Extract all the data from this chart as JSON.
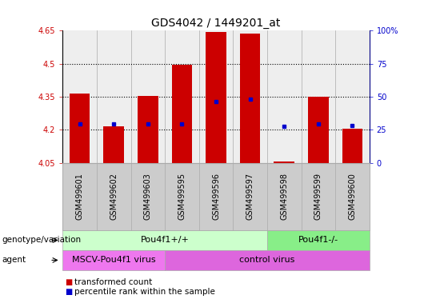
{
  "title": "GDS4042 / 1449201_at",
  "samples": [
    "GSM499601",
    "GSM499602",
    "GSM499603",
    "GSM499595",
    "GSM499596",
    "GSM499597",
    "GSM499598",
    "GSM499599",
    "GSM499600"
  ],
  "bar_values": [
    4.365,
    4.215,
    4.355,
    4.495,
    4.645,
    4.638,
    4.055,
    4.35,
    4.205
  ],
  "percentile_values": [
    4.228,
    4.228,
    4.228,
    4.228,
    4.328,
    4.338,
    4.215,
    4.225,
    4.22
  ],
  "bar_bottom": 4.05,
  "ylim": [
    4.05,
    4.65
  ],
  "yticks": [
    4.05,
    4.2,
    4.35,
    4.5,
    4.65
  ],
  "ytick_labels": [
    "4.05",
    "4.2",
    "4.35",
    "4.5",
    "4.65"
  ],
  "right_yticks": [
    0,
    25,
    50,
    75,
    100
  ],
  "right_ytick_labels": [
    "0",
    "25",
    "50",
    "75",
    "100%"
  ],
  "bar_color": "#cc0000",
  "percentile_color": "#0000cc",
  "dotted_lines": [
    4.2,
    4.35,
    4.5
  ],
  "genotype_groups": [
    {
      "label": "Pou4f1+/+",
      "start": 0,
      "end": 6,
      "color": "#ccffcc"
    },
    {
      "label": "Pou4f1-/-",
      "start": 6,
      "end": 9,
      "color": "#88ee88"
    }
  ],
  "agent_groups": [
    {
      "label": "MSCV-Pou4f1 virus",
      "start": 0,
      "end": 3,
      "color": "#ee77ee"
    },
    {
      "label": "control virus",
      "start": 3,
      "end": 9,
      "color": "#dd66dd"
    }
  ],
  "background_color": "#ffffff",
  "plot_bg_color": "#eeeeee",
  "xtick_bg_color": "#cccccc",
  "separator_color": "#aaaaaa",
  "tick_label_fontsize": 7,
  "title_fontsize": 10,
  "annot_fontsize": 8,
  "legend_fontsize": 7.5
}
